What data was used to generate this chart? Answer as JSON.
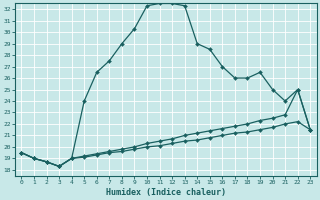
{
  "xlabel": "Humidex (Indice chaleur)",
  "background_color": "#c8e8e8",
  "line_color": "#1a6060",
  "grid_color": "#b0d8d8",
  "xlim": [
    -0.5,
    23.5
  ],
  "ylim": [
    17.5,
    32.5
  ],
  "xticks": [
    0,
    1,
    2,
    3,
    4,
    5,
    6,
    7,
    8,
    9,
    10,
    11,
    12,
    13,
    14,
    15,
    16,
    17,
    18,
    19,
    20,
    21,
    22,
    23
  ],
  "yticks": [
    18,
    19,
    20,
    21,
    22,
    23,
    24,
    25,
    26,
    27,
    28,
    29,
    30,
    31,
    32
  ],
  "line1_x": [
    0,
    1,
    2,
    3,
    4,
    5,
    6,
    7,
    8,
    9,
    10,
    11,
    12,
    13,
    14,
    15,
    16,
    17,
    18,
    19,
    20,
    21,
    22,
    23
  ],
  "line1_y": [
    19.5,
    19.0,
    18.7,
    18.3,
    19.0,
    24.0,
    26.5,
    27.5,
    29.0,
    30.3,
    32.3,
    32.5,
    32.5,
    32.3,
    29.0,
    28.5,
    27.0,
    26.0,
    26.0,
    26.5,
    25.0,
    24.0,
    25.0,
    21.5
  ],
  "line2_x": [
    0,
    1,
    2,
    3,
    4,
    5,
    6,
    7,
    8,
    9,
    10,
    11,
    12,
    13,
    14,
    15,
    16,
    17,
    18,
    19,
    20,
    21,
    22,
    23
  ],
  "line2_y": [
    19.5,
    19.0,
    18.7,
    18.3,
    19.0,
    19.2,
    19.4,
    19.6,
    19.8,
    20.0,
    20.3,
    20.5,
    20.7,
    21.0,
    21.2,
    21.4,
    21.6,
    21.8,
    22.0,
    22.3,
    22.5,
    22.8,
    25.0,
    21.5
  ],
  "line3_x": [
    0,
    1,
    2,
    3,
    4,
    5,
    6,
    7,
    8,
    9,
    10,
    11,
    12,
    13,
    14,
    15,
    16,
    17,
    18,
    19,
    20,
    21,
    22,
    23
  ],
  "line3_y": [
    19.5,
    19.0,
    18.7,
    18.3,
    19.0,
    19.1,
    19.3,
    19.5,
    19.6,
    19.8,
    20.0,
    20.1,
    20.3,
    20.5,
    20.6,
    20.8,
    21.0,
    21.2,
    21.3,
    21.5,
    21.7,
    22.0,
    22.2,
    21.5
  ]
}
